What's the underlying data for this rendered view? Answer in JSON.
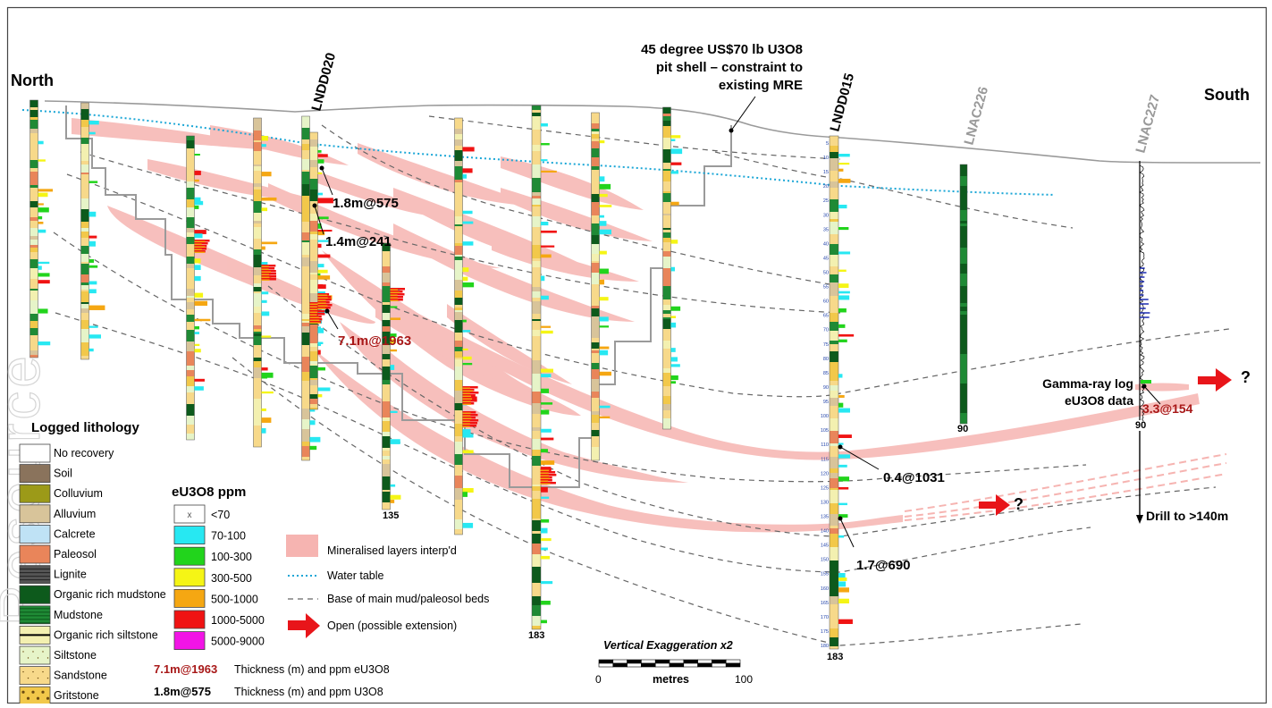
{
  "labels": {
    "north": "North",
    "south": "South",
    "pit_shell": [
      "45 degree US$70 lb U3O8",
      "pit shell – constraint to",
      "existing MRE"
    ]
  },
  "holes": {
    "lndd020": "LNDD020",
    "lndd015": "LNDD015",
    "lnac226": "LNAC226",
    "lnac227": "LNAC227"
  },
  "depths": {
    "d135": "135",
    "d183a": "183",
    "d183b": "183",
    "d90a": "90",
    "d90b": "90"
  },
  "intercepts": {
    "i1": "1.8m@575",
    "i2": "1.4m@241",
    "i3": "7.1m@1963",
    "i4": "0.4@1031",
    "i5": "1.7@690",
    "i6": "3.3@154"
  },
  "annotations": {
    "gamma1": "Gamma-ray log",
    "gamma2": "eU3O8 data",
    "drill": "Drill to >140m",
    "question": "?"
  },
  "depth_ticks": [
    "5",
    "10",
    "15",
    "20",
    "25",
    "30",
    "35",
    "40",
    "45",
    "50",
    "55",
    "60",
    "65",
    "70",
    "75",
    "80",
    "85",
    "90",
    "95",
    "100",
    "105",
    "110",
    "115",
    "120",
    "125",
    "130",
    "135",
    "140",
    "145",
    "150",
    "155",
    "160",
    "165",
    "170",
    "175",
    "180"
  ],
  "lithology_legend": {
    "title": "Logged lithology",
    "items": [
      {
        "label": "No recovery",
        "color": "#ffffff"
      },
      {
        "label": "Soil",
        "color": "#8a735c"
      },
      {
        "label": "Colluvium",
        "color": "#9c9a18"
      },
      {
        "label": "Alluvium",
        "color": "#d8c49a"
      },
      {
        "label": "Calcrete",
        "color": "#bfe2f5"
      },
      {
        "label": "Paleosol",
        "color": "#e9855a"
      },
      {
        "label": "Lignite",
        "color": "#555555"
      },
      {
        "label": "Organic rich mudstone",
        "color": "#0d5a1c"
      },
      {
        "label": "Mudstone",
        "color": "#1f8a35"
      },
      {
        "label": "Organic rich siltstone",
        "color": "#f3f0b0"
      },
      {
        "label": "Siltstone",
        "color": "#e6f4c8"
      },
      {
        "label": "Sandstone",
        "color": "#f7d98a"
      },
      {
        "label": "Gritstone",
        "color": "#f2c84a"
      }
    ]
  },
  "grade_legend": {
    "title": "eU3O8 ppm",
    "items": [
      {
        "label": "<70",
        "color": "#ffffff",
        "mark": "x"
      },
      {
        "label": "70-100",
        "color": "#27e8f2"
      },
      {
        "label": "100-300",
        "color": "#22d41c"
      },
      {
        "label": "300-500",
        "color": "#f5f515"
      },
      {
        "label": "500-1000",
        "color": "#f5a712"
      },
      {
        "label": "1000-5000",
        "color": "#f01313"
      },
      {
        "label": "5000-9000",
        "color": "#f214e6"
      }
    ]
  },
  "symbol_legend": {
    "mineralised": "Mineralised layers interp'd",
    "water_table": "Water table",
    "base_mud": "Base of main mud/paleosol beds",
    "open": "Open (possible extension)"
  },
  "intercept_key": {
    "red_example": "7.1m@1963",
    "red_text": "Thickness (m) and ppm eU3O8",
    "black_example": "1.8m@575",
    "black_text": "Thickness (m) and ppm U3O8"
  },
  "scale": {
    "title": "Vertical Exaggeration x2",
    "min": "0",
    "unit": "metres",
    "max": "100"
  },
  "watermark": "Resource"
}
